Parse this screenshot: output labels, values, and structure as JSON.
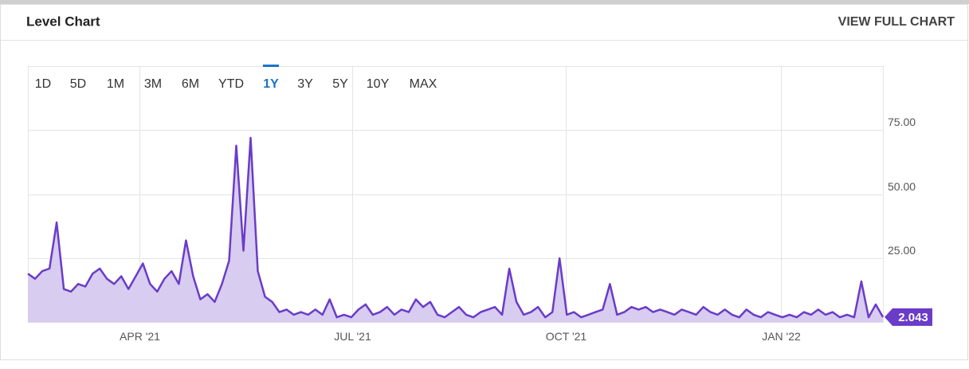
{
  "header": {
    "title": "Level Chart",
    "link": "VIEW FULL CHART"
  },
  "range_buttons": [
    "1D",
    "5D",
    "1M",
    "3M",
    "6M",
    "YTD",
    "1Y",
    "3Y",
    "5Y",
    "10Y",
    "MAX"
  ],
  "active_range": 6,
  "chart_data": {
    "type": "area",
    "x_labels": [
      "APR '21",
      "JUL '21",
      "OCT '21",
      "JAN '22"
    ],
    "series": [
      {
        "color": "#6a3cc8",
        "fill": "#d8ccf0",
        "values": [
          19,
          17,
          20,
          21,
          39,
          13,
          12,
          15,
          14,
          19,
          21,
          17,
          15,
          18,
          13,
          18,
          23,
          15,
          12,
          17,
          20,
          15,
          32,
          18,
          9,
          11,
          8,
          15,
          24,
          69,
          28,
          72,
          20,
          10,
          8,
          4,
          5,
          3,
          4,
          3,
          5,
          3,
          9,
          2,
          3,
          2,
          5,
          7,
          3,
          4,
          6,
          3,
          5,
          4,
          9,
          6,
          8,
          3,
          2,
          4,
          6,
          3,
          2,
          4,
          5,
          6,
          3,
          21,
          8,
          3,
          4,
          6,
          2,
          4,
          25,
          3,
          4,
          2,
          3,
          4,
          5,
          15,
          3,
          4,
          6,
          5,
          6,
          4,
          5,
          4,
          3,
          5,
          4,
          3,
          6,
          4,
          3,
          5,
          3,
          2,
          5,
          3,
          2,
          4,
          3,
          2,
          3,
          2,
          4,
          3,
          5,
          3,
          4,
          2,
          3,
          2,
          16,
          2,
          7,
          2.043
        ]
      }
    ],
    "ylim": [
      0,
      100
    ],
    "yticks": [
      {
        "value": 25,
        "label": "25.00"
      },
      {
        "value": 50,
        "label": "50.00"
      },
      {
        "value": 75,
        "label": "75.00"
      }
    ],
    "grid": true
  }
}
